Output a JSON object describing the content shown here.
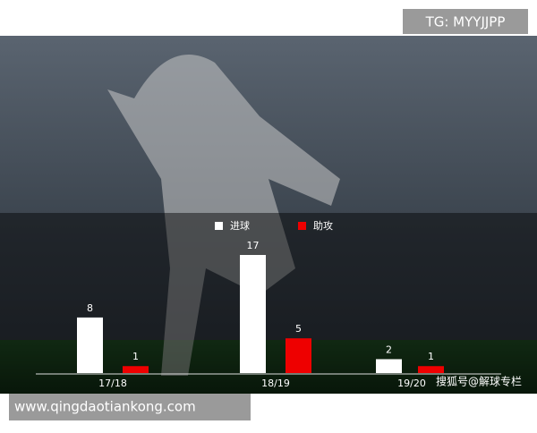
{
  "chart_data": {
    "type": "bar",
    "categories": [
      "17/18",
      "18/19",
      "19/20"
    ],
    "series": [
      {
        "name": "进球",
        "color": "#ffffff",
        "values": [
          8,
          17,
          2
        ]
      },
      {
        "name": "助攻",
        "color": "#ee0000",
        "values": [
          1,
          5,
          1
        ]
      }
    ]
  },
  "watermark": "TG: MYYJJPP",
  "website": "www.qingdaotiankong.com",
  "source": "搜狐号@解球专栏"
}
